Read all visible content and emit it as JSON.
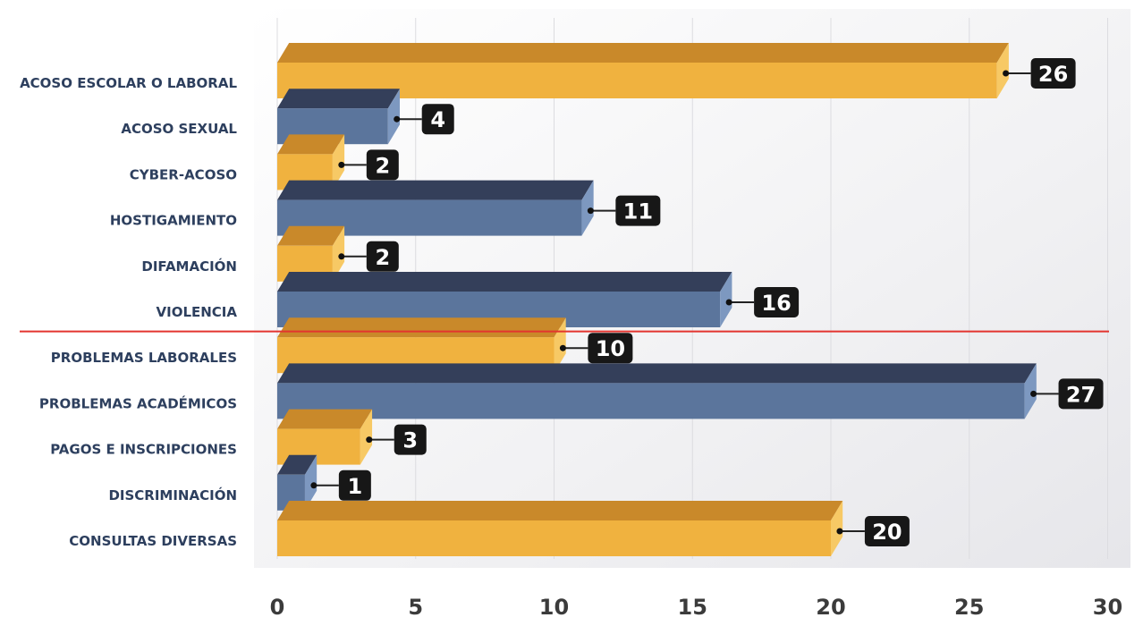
{
  "chart_data": {
    "type": "bar",
    "orientation": "horizontal",
    "style": "3d",
    "categories": [
      "ACOSO ESCOLAR O LABORAL",
      "ACOSO SEXUAL",
      "CYBER-ACOSO",
      "HOSTIGAMIENTO",
      "DIFAMACIÓN",
      "VIOLENCIA",
      "PROBLEMAS LABORALES",
      "PROBLEMAS ACADÉMICOS",
      "PAGOS E INSCRIPCIONES",
      "DISCRIMINACIÓN",
      "CONSULTAS DIVERSAS"
    ],
    "values": [
      26,
      4,
      2,
      11,
      2,
      16,
      10,
      27,
      3,
      1,
      20
    ],
    "bar_colors": [
      "gold",
      "blue",
      "gold",
      "blue",
      "gold",
      "blue",
      "gold",
      "blue",
      "gold",
      "blue",
      "gold"
    ],
    "data_labels": [
      "26",
      "4",
      "2",
      "11",
      "2",
      "16",
      "10",
      "27",
      "3",
      "1",
      "20"
    ],
    "x_ticks": [
      "0",
      "5",
      "10",
      "15",
      "20",
      "25",
      "30"
    ],
    "xlim": [
      0,
      30
    ],
    "grid": true,
    "separator_after_category": "VIOLENCIA",
    "colors": {
      "gold_front": "#f0b23f",
      "gold_top": "#c9892a",
      "gold_end": "#f7c965",
      "blue_front": "#5b759c",
      "blue_top": "#343f5a",
      "blue_end": "#7d98c0",
      "label_bg": "#171717",
      "label_text": "#ffffff",
      "axis_text": "#3b3b3b",
      "category_text": "#2d3f5e",
      "separator": "#e3342f",
      "panel_bg": "#f1f1f3",
      "grid": "#dcdce0"
    }
  }
}
